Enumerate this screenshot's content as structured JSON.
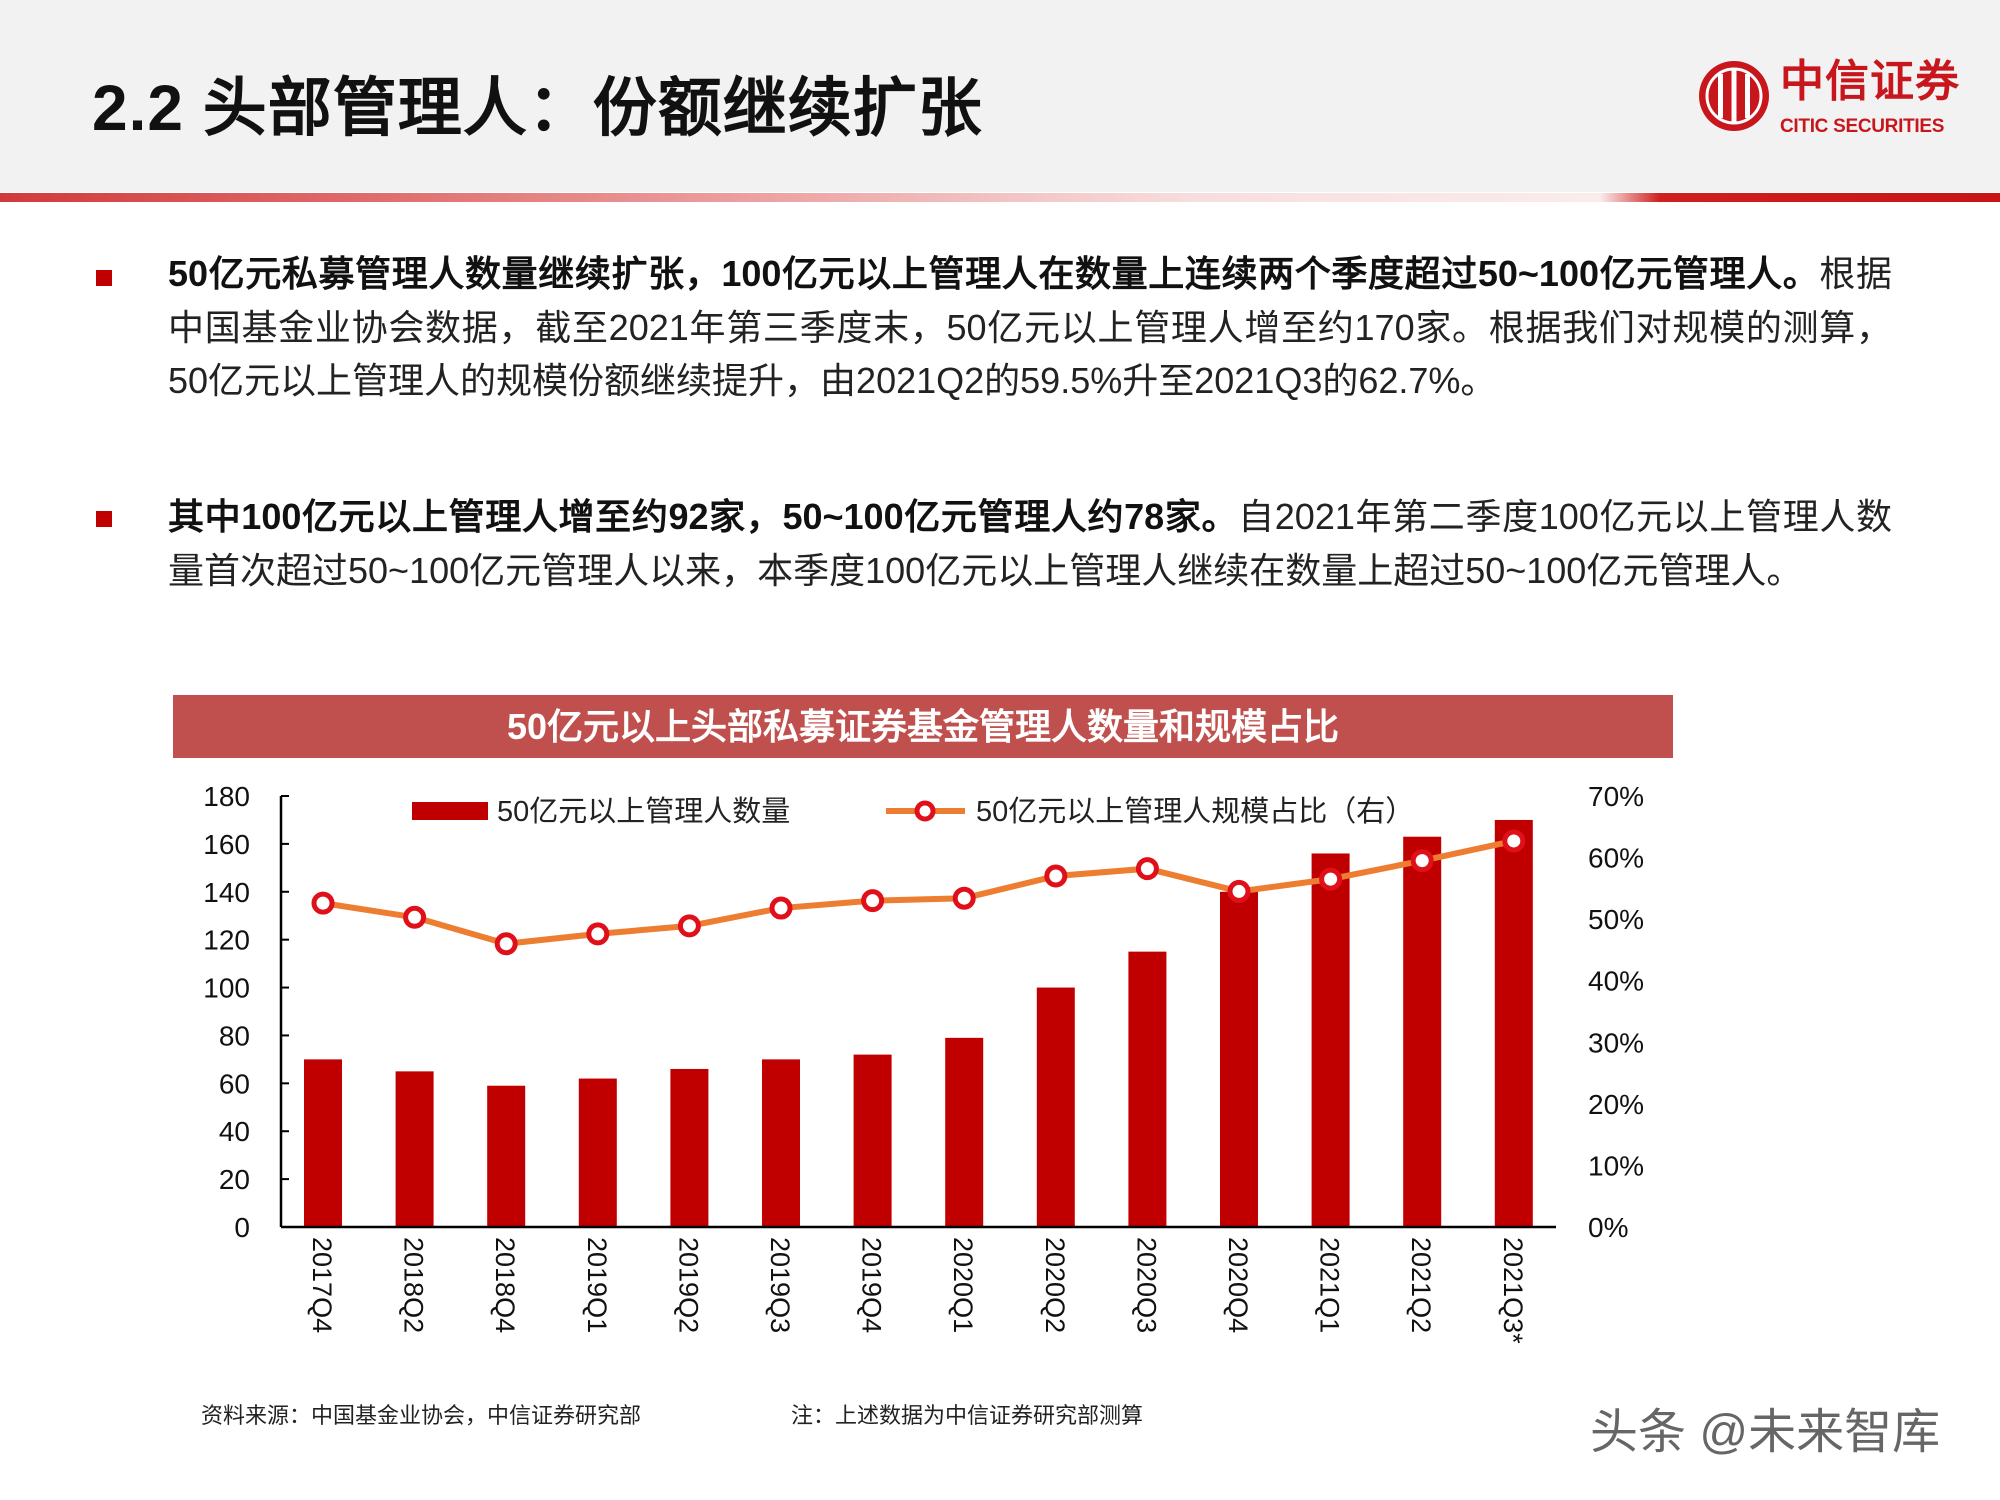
{
  "header": {
    "title": "2.2 头部管理人：份额继续扩张",
    "logo_cn": "中信证券",
    "logo_en": "CITIC SECURITIES"
  },
  "bullets": [
    {
      "bold": "50亿元私募管理人数量继续扩张，100亿元以上管理人在数量上连续两个季度超过50~100亿元管理人。",
      "text": "根据中国基金业协会数据，截至2021年第三季度末，50亿元以上管理人增至约170家。根据我们对规模的测算，50亿元以上管理人的规模份额继续提升，由2021Q2的59.5%升至2021Q3的62.7%。"
    },
    {
      "bold": "其中100亿元以上管理人增至约92家，50~100亿元管理人约78家。",
      "text": "自2021年第二季度100亿元以上管理人数量首次超过50~100亿元管理人以来，本季度100亿元以上管理人继续在数量上超过50~100亿元管理人。"
    }
  ],
  "chart_data": {
    "type": "bar+line",
    "title": "50亿元以上头部私募证券基金管理人数量和规模占比",
    "categories": [
      "2017Q4",
      "2018Q2",
      "2018Q4",
      "2019Q1",
      "2019Q2",
      "2019Q3",
      "2019Q4",
      "2020Q1",
      "2020Q2",
      "2020Q3",
      "2020Q4",
      "2021Q1",
      "2021Q2",
      "2021Q3*"
    ],
    "series": [
      {
        "name": "50亿元以上管理人数量",
        "type": "bar",
        "axis": "left",
        "color": "#c00000",
        "values": [
          70,
          65,
          59,
          62,
          66,
          70,
          72,
          79,
          100,
          115,
          140,
          156,
          163,
          170
        ]
      },
      {
        "name": "50亿元以上管理人规模占比（右）",
        "type": "line",
        "axis": "right",
        "color": "#ed7d31",
        "marker_color": "#e0101a",
        "values": [
          52.6,
          50.3,
          46.0,
          47.6,
          48.9,
          51.8,
          53.0,
          53.4,
          57.0,
          58.2,
          54.5,
          56.5,
          59.5,
          62.7
        ]
      }
    ],
    "y_left": {
      "range": [
        0,
        180
      ],
      "ticks": [
        "0",
        "20",
        "40",
        "60",
        "80",
        "100",
        "120",
        "140",
        "160",
        "180"
      ]
    },
    "y_right": {
      "range": [
        0,
        70
      ],
      "unit": "%",
      "ticks": [
        "0%",
        "10%",
        "20%",
        "30%",
        "40%",
        "50%",
        "60%",
        "70%"
      ]
    },
    "legend": "top",
    "grid": false,
    "title_bar_color": "#c0504d"
  },
  "footer": {
    "source": "资料来源：中国基金业协会，中信证券研究部",
    "note": "注：上述数据为中信证券研究部测算",
    "watermark": "头条 @未来智库"
  }
}
